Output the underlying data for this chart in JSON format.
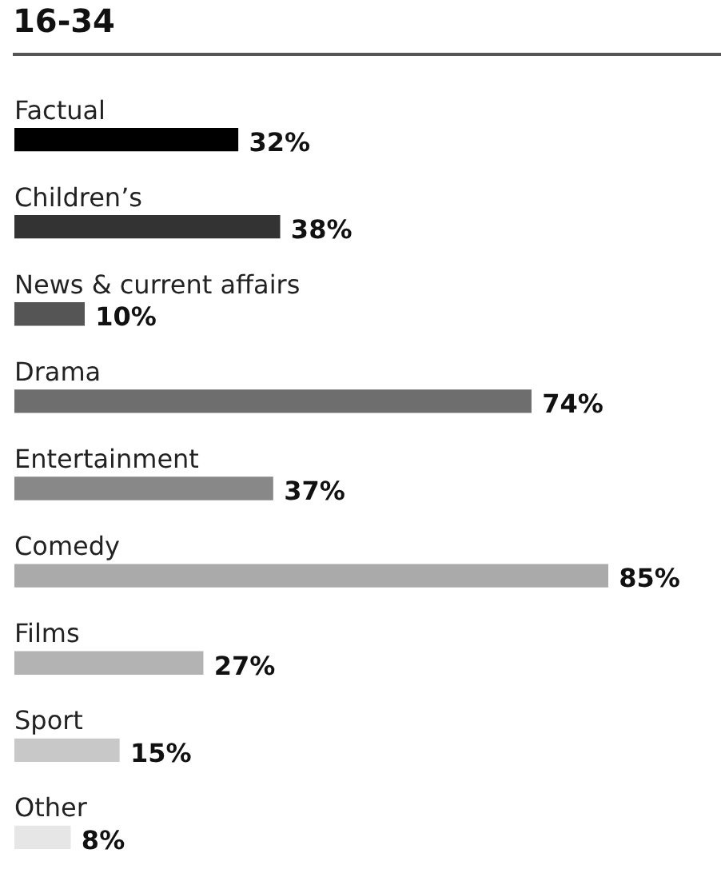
{
  "chart_data": {
    "type": "bar",
    "orientation": "horizontal",
    "title": "16-34",
    "categories": [
      "Factual",
      "Children’s",
      "News & current affairs",
      "Drama",
      "Entertainment",
      "Comedy",
      "Films",
      "Sport",
      "Other"
    ],
    "values": [
      32,
      38,
      10,
      74,
      37,
      85,
      27,
      15,
      8
    ],
    "value_labels": [
      "32%",
      "38%",
      "10%",
      "74%",
      "37%",
      "85%",
      "27%",
      "15%",
      "8%"
    ],
    "colors": [
      "#000000",
      "#333333",
      "#555555",
      "#6e6e6e",
      "#888888",
      "#aaaaaa",
      "#b3b3b3",
      "#c8c8c8",
      "#e6e6e6"
    ],
    "tick_labels": false
  }
}
